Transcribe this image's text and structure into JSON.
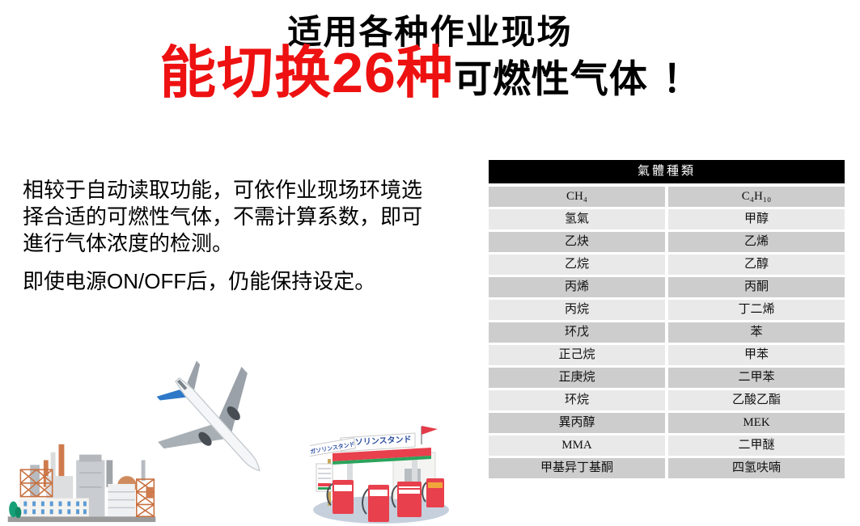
{
  "title": {
    "line1": "适用各种作业现场",
    "line2_red": "能切换26种",
    "line2_black": "可燃性气体",
    "line2_exclaim": "！"
  },
  "body": {
    "paragraph1_lines": [
      "相较于自动读取功能，可依作业现场环境选",
      "择合适的可燃性气体，不需计算系数，即可",
      "進行气体浓度的检测。"
    ],
    "paragraph2_lines": [
      "即使电源ON/OFF后，仍能保持设定。"
    ]
  },
  "gas_table": {
    "header": "氣體種類",
    "rows": [
      [
        "CH₄",
        "C₄H₁₀"
      ],
      [
        "氢氣",
        "甲醇"
      ],
      [
        "乙炔",
        "乙烯"
      ],
      [
        "乙烷",
        "乙醇"
      ],
      [
        "丙烯",
        "丙酮"
      ],
      [
        "丙烷",
        "丁二烯"
      ],
      [
        "环戊",
        "苯"
      ],
      [
        "正己烷",
        "甲苯"
      ],
      [
        "正庚烷",
        "二甲苯"
      ],
      [
        "环烷",
        "乙酸乙酯"
      ],
      [
        "異丙醇",
        "MEK"
      ],
      [
        "MMA",
        "二甲醚"
      ],
      [
        "甲基异丁基酮",
        "四氢呋喃"
      ]
    ]
  },
  "illustrations": {
    "factory_icon": "factory-illustration",
    "airplane_icon": "airplane-illustration",
    "gas_station_icon": "gas-station-illustration",
    "gas_station_sign_text": "ガソリンスタンド"
  },
  "colors": {
    "accent_red": "#ee1111",
    "table_header_bg": "#000000",
    "table_row_dark": "#cdcdcd",
    "table_row_light": "#e9e9e9"
  }
}
